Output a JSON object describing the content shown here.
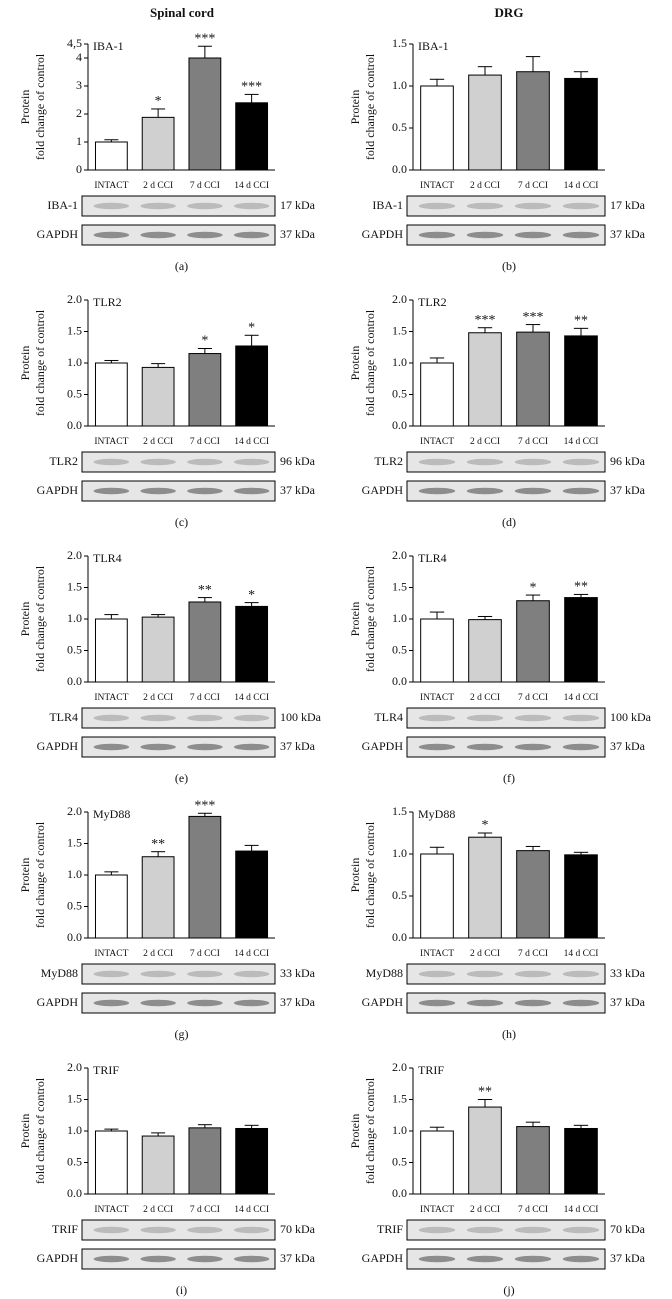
{
  "column_titles": [
    "Spinal cord",
    "DRG"
  ],
  "chart_data": [
    {
      "type": "bar",
      "panel": "(a)",
      "label": "IBA-1",
      "ylabel": [
        "Protein",
        "fold change of control"
      ],
      "categories": [
        "INTACT",
        "2 d CCI",
        "7 d CCI",
        "14 d CCI"
      ],
      "values": [
        1.0,
        1.88,
        4.0,
        2.4
      ],
      "errors": [
        0.08,
        0.3,
        0.42,
        0.3
      ],
      "annotations": [
        null,
        "*",
        "***",
        "***"
      ],
      "colors": [
        "#ffffff",
        "#d0d0d0",
        "#7f7f7f",
        "#000000"
      ],
      "ylim": [
        0,
        4.5
      ],
      "yticks": [
        0,
        1,
        2,
        3,
        4,
        {
          "value": 4.5,
          "label": "4,5"
        }
      ],
      "blots": [
        {
          "name": "IBA-1",
          "size": "17 kDa"
        },
        {
          "name": "GAPDH",
          "size": "37 kDa"
        }
      ]
    },
    {
      "type": "bar",
      "panel": "(b)",
      "label": "IBA-1",
      "ylabel": [
        "Protein",
        "fold change of control"
      ],
      "categories": [
        "INTACT",
        "2 d CCI",
        "7 d CCI",
        "14 d CCI"
      ],
      "values": [
        1.0,
        1.13,
        1.17,
        1.09
      ],
      "errors": [
        0.08,
        0.1,
        0.18,
        0.08
      ],
      "annotations": [
        null,
        null,
        null,
        null
      ],
      "colors": [
        "#ffffff",
        "#d0d0d0",
        "#7f7f7f",
        "#000000"
      ],
      "ylim": [
        0,
        1.5
      ],
      "yticks": [
        {
          "value": 0,
          "label": "0.0"
        },
        0.5,
        {
          "value": 1,
          "label": "1.0"
        },
        1.5
      ],
      "blots": [
        {
          "name": "IBA-1",
          "size": "17 kDa"
        },
        {
          "name": "GAPDH",
          "size": "37 kDa"
        }
      ]
    },
    {
      "type": "bar",
      "panel": "(c)",
      "label": "TLR2",
      "ylabel": [
        "Protein",
        "fold change of control"
      ],
      "categories": [
        "INTACT",
        "2 d CCI",
        "7 d CCI",
        "14 d CCI"
      ],
      "values": [
        1.0,
        0.93,
        1.15,
        1.27
      ],
      "errors": [
        0.04,
        0.06,
        0.08,
        0.17
      ],
      "annotations": [
        null,
        null,
        "*",
        "*"
      ],
      "colors": [
        "#ffffff",
        "#d0d0d0",
        "#7f7f7f",
        "#000000"
      ],
      "ylim": [
        0,
        2
      ],
      "yticks": [
        {
          "value": 0,
          "label": "0.0"
        },
        0.5,
        {
          "value": 1,
          "label": "1.0"
        },
        1.5,
        {
          "value": 2,
          "label": "2.0"
        }
      ],
      "blots": [
        {
          "name": "TLR2",
          "size": "96 kDa"
        },
        {
          "name": "GAPDH",
          "size": "37 kDa"
        }
      ]
    },
    {
      "type": "bar",
      "panel": "(d)",
      "label": "TLR2",
      "ylabel": [
        "Protein",
        "fold change of control"
      ],
      "categories": [
        "INTACT",
        "2 d CCI",
        "7 d CCI",
        "14 d CCI"
      ],
      "values": [
        1.0,
        1.48,
        1.49,
        1.43
      ],
      "errors": [
        0.08,
        0.08,
        0.12,
        0.12
      ],
      "annotations": [
        null,
        "***",
        "***",
        "**"
      ],
      "colors": [
        "#ffffff",
        "#d0d0d0",
        "#7f7f7f",
        "#000000"
      ],
      "ylim": [
        0,
        2
      ],
      "yticks": [
        {
          "value": 0,
          "label": "0.0"
        },
        0.5,
        {
          "value": 1,
          "label": "1.0"
        },
        1.5,
        {
          "value": 2,
          "label": "2.0"
        }
      ],
      "blots": [
        {
          "name": "TLR2",
          "size": "96 kDa"
        },
        {
          "name": "GAPDH",
          "size": "37 kDa"
        }
      ]
    },
    {
      "type": "bar",
      "panel": "(e)",
      "label": "TLR4",
      "ylabel": [
        "Protein",
        "fold change of control"
      ],
      "categories": [
        "INTACT",
        "2 d CCI",
        "7 d CCI",
        "14 d CCI"
      ],
      "values": [
        1.0,
        1.03,
        1.27,
        1.2
      ],
      "errors": [
        0.07,
        0.04,
        0.07,
        0.06
      ],
      "annotations": [
        null,
        null,
        "**",
        "*"
      ],
      "colors": [
        "#ffffff",
        "#d0d0d0",
        "#7f7f7f",
        "#000000"
      ],
      "ylim": [
        0,
        2
      ],
      "yticks": [
        {
          "value": 0,
          "label": "0.0"
        },
        0.5,
        {
          "value": 1,
          "label": "1.0"
        },
        1.5,
        {
          "value": 2,
          "label": "2.0"
        }
      ],
      "blots": [
        {
          "name": "TLR4",
          "size": "100 kDa"
        },
        {
          "name": "GAPDH",
          "size": "37 kDa"
        }
      ]
    },
    {
      "type": "bar",
      "panel": "(f)",
      "label": "TLR4",
      "ylabel": [
        "Protein",
        "fold change of control"
      ],
      "categories": [
        "INTACT",
        "2 d CCI",
        "7 d CCI",
        "14 d CCI"
      ],
      "values": [
        1.0,
        0.99,
        1.29,
        1.34
      ],
      "errors": [
        0.11,
        0.05,
        0.09,
        0.05
      ],
      "annotations": [
        null,
        null,
        "*",
        "**"
      ],
      "colors": [
        "#ffffff",
        "#d0d0d0",
        "#7f7f7f",
        "#000000"
      ],
      "ylim": [
        0,
        2
      ],
      "yticks": [
        {
          "value": 0,
          "label": "0.0"
        },
        0.5,
        {
          "value": 1,
          "label": "1.0"
        },
        1.5,
        {
          "value": 2,
          "label": "2.0"
        }
      ],
      "blots": [
        {
          "name": "TLR4",
          "size": "100 kDa"
        },
        {
          "name": "GAPDH",
          "size": "37 kDa"
        }
      ]
    },
    {
      "type": "bar",
      "panel": "(g)",
      "label": "MyD88",
      "ylabel": [
        "Protein",
        "fold change of control"
      ],
      "categories": [
        "INTACT",
        "2 d CCI",
        "7 d CCI",
        "14 d CCI"
      ],
      "values": [
        1.0,
        1.29,
        1.93,
        1.38
      ],
      "errors": [
        0.05,
        0.08,
        0.05,
        0.09
      ],
      "annotations": [
        null,
        "**",
        "***",
        null
      ],
      "colors": [
        "#ffffff",
        "#d0d0d0",
        "#7f7f7f",
        "#000000"
      ],
      "ylim": [
        0,
        2
      ],
      "yticks": [
        {
          "value": 0,
          "label": "0.0"
        },
        0.5,
        {
          "value": 1,
          "label": "1.0"
        },
        1.5,
        {
          "value": 2,
          "label": "2.0"
        }
      ],
      "blots": [
        {
          "name": "MyD88",
          "size": "33 kDa"
        },
        {
          "name": "GAPDH",
          "size": "37 kDa"
        }
      ]
    },
    {
      "type": "bar",
      "panel": "(h)",
      "label": "MyD88",
      "ylabel": [
        "Protein",
        "fold change of control"
      ],
      "categories": [
        "INTACT",
        "2 d CCI",
        "7 d CCI",
        "14 d CCI"
      ],
      "values": [
        1.0,
        1.2,
        1.04,
        0.99
      ],
      "errors": [
        0.08,
        0.05,
        0.05,
        0.03
      ],
      "annotations": [
        null,
        "*",
        null,
        null
      ],
      "colors": [
        "#ffffff",
        "#d0d0d0",
        "#7f7f7f",
        "#000000"
      ],
      "ylim": [
        0,
        1.5
      ],
      "yticks": [
        {
          "value": 0,
          "label": "0.0"
        },
        0.5,
        {
          "value": 1,
          "label": "1.0"
        },
        1.5
      ],
      "blots": [
        {
          "name": "MyD88",
          "size": "33 kDa"
        },
        {
          "name": "GAPDH",
          "size": "37 kDa"
        }
      ]
    },
    {
      "type": "bar",
      "panel": "(i)",
      "label": "TRIF",
      "ylabel": [
        "Protein",
        "fold change of control"
      ],
      "categories": [
        "INTACT",
        "2 d CCI",
        "7 d CCI",
        "14 d CCI"
      ],
      "values": [
        1.0,
        0.92,
        1.05,
        1.04
      ],
      "errors": [
        0.03,
        0.05,
        0.05,
        0.05
      ],
      "annotations": [
        null,
        null,
        null,
        null
      ],
      "colors": [
        "#ffffff",
        "#d0d0d0",
        "#7f7f7f",
        "#000000"
      ],
      "ylim": [
        0,
        2
      ],
      "yticks": [
        {
          "value": 0,
          "label": "0.0"
        },
        0.5,
        {
          "value": 1,
          "label": "1.0"
        },
        1.5,
        {
          "value": 2,
          "label": "2.0"
        }
      ],
      "blots": [
        {
          "name": "TRIF",
          "size": "70 kDa"
        },
        {
          "name": "GAPDH",
          "size": "37 kDa"
        }
      ]
    },
    {
      "type": "bar",
      "panel": "(j)",
      "label": "TRIF",
      "ylabel": [
        "Protein",
        "fold change of control"
      ],
      "categories": [
        "INTACT",
        "2 d CCI",
        "7 d CCI",
        "14 d CCI"
      ],
      "values": [
        1.0,
        1.38,
        1.07,
        1.04
      ],
      "errors": [
        0.06,
        0.12,
        0.07,
        0.05
      ],
      "annotations": [
        null,
        "**",
        null,
        null
      ],
      "colors": [
        "#ffffff",
        "#d0d0d0",
        "#7f7f7f",
        "#000000"
      ],
      "ylim": [
        0,
        2
      ],
      "yticks": [
        {
          "value": 0,
          "label": "0.0"
        },
        0.5,
        {
          "value": 1,
          "label": "1.0"
        },
        1.5,
        {
          "value": 2,
          "label": "2.0"
        }
      ],
      "blots": [
        {
          "name": "TRIF",
          "size": "70 kDa"
        },
        {
          "name": "GAPDH",
          "size": "37 kDa"
        }
      ]
    }
  ]
}
